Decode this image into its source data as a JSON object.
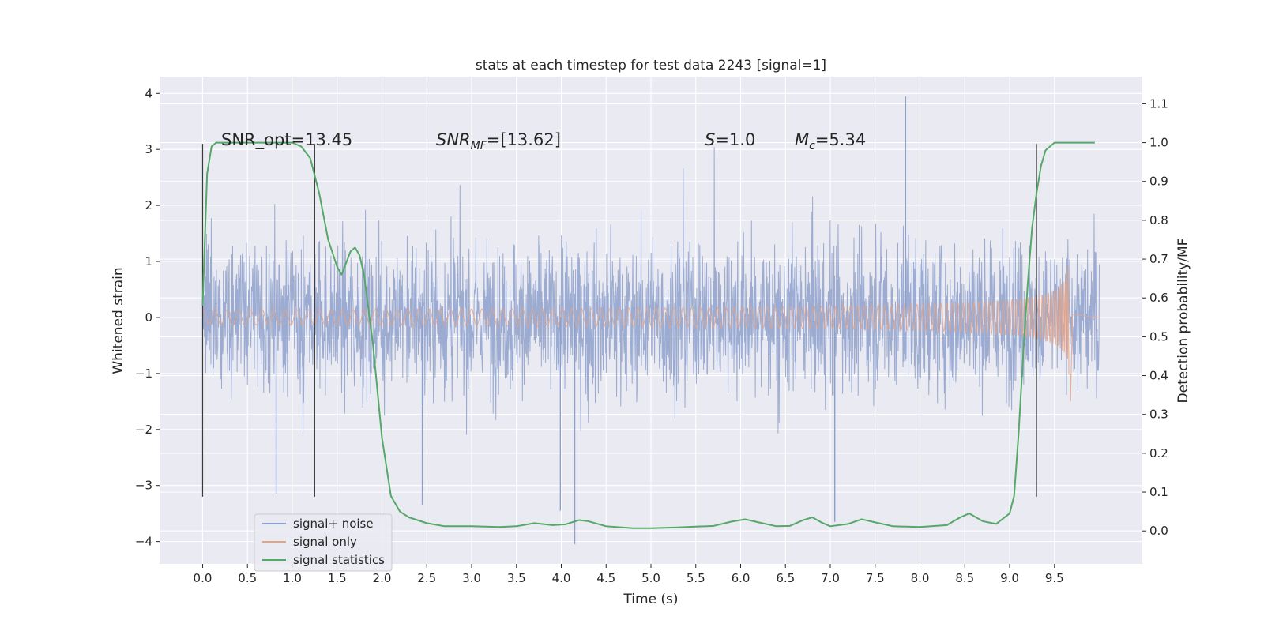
{
  "chart_data": {
    "type": "line",
    "title": "stats at each timestep for test data 2243 [signal=1]",
    "xlabel": "Time (s)",
    "ylabel": "Whitened strain",
    "y2label": "Detection probability/MF",
    "xlim": [
      -0.48,
      10.48
    ],
    "ylim": [
      -4.4,
      4.3
    ],
    "y2lim": [
      -0.085,
      1.17
    ],
    "x_ticks": [
      0.0,
      0.5,
      1.0,
      1.5,
      2.0,
      2.5,
      3.0,
      3.5,
      4.0,
      4.5,
      5.0,
      5.5,
      6.0,
      6.5,
      7.0,
      7.5,
      8.0,
      8.5,
      9.0,
      9.5
    ],
    "x_tick_labels": [
      "0.0",
      "0.5",
      "1.0",
      "1.5",
      "2.0",
      "2.5",
      "3.0",
      "3.5",
      "4.0",
      "4.5",
      "5.0",
      "5.5",
      "6.0",
      "6.5",
      "7.0",
      "7.5",
      "8.0",
      "8.5",
      "9.0",
      "9.5"
    ],
    "y_ticks": [
      -4,
      -3,
      -2,
      -1,
      0,
      1,
      2,
      3,
      4
    ],
    "y_tick_labels": [
      "−4",
      "−3",
      "−2",
      "−1",
      "0",
      "1",
      "2",
      "3",
      "4"
    ],
    "y2_ticks": [
      0.0,
      0.1,
      0.2,
      0.3,
      0.4,
      0.5,
      0.6,
      0.7,
      0.8,
      0.9,
      1.0,
      1.1
    ],
    "y2_tick_labels": [
      "0.0",
      "0.1",
      "0.2",
      "0.3",
      "0.4",
      "0.5",
      "0.6",
      "0.7",
      "0.8",
      "0.9",
      "1.0",
      "1.1"
    ],
    "grid": true,
    "legend_position": "bottom-left",
    "annotations": {
      "snr_opt": "SNR_opt=13.45",
      "snr_mf_main": "SNR",
      "snr_mf_sub": "MF",
      "snr_mf_rest": "=[13.62]",
      "s_main": "S",
      "s_rest": "=1.0",
      "mc_main": "M",
      "mc_sub": "c",
      "mc_rest": "=5.34"
    },
    "vertical_lines_x": [
      0.0,
      1.25,
      9.3
    ],
    "series": [
      {
        "name": "signal+ noise",
        "color": "#8da0cb",
        "x_range": [
          0.0,
          10.0
        ],
        "envelope_typical": 1.5,
        "peak_max": 3.95,
        "peak_min": -4.05
      },
      {
        "name": "signal only",
        "color": "#e8a385",
        "x_range": [
          0.0,
          9.68
        ],
        "amplitude_start": 0.02,
        "amplitude_end": 1.15,
        "cutoff_x": 9.68
      },
      {
        "name": "signal statistics",
        "color": "#55a868",
        "x": [
          0.0,
          0.05,
          0.1,
          0.15,
          0.2,
          0.4,
          0.6,
          0.8,
          0.9,
          1.0,
          1.1,
          1.2,
          1.3,
          1.4,
          1.5,
          1.55,
          1.6,
          1.65,
          1.7,
          1.75,
          1.8,
          1.9,
          2.0,
          2.1,
          2.2,
          2.3,
          2.5,
          2.7,
          3.0,
          3.3,
          3.5,
          3.7,
          3.9,
          4.05,
          4.2,
          4.3,
          4.5,
          4.8,
          5.0,
          5.3,
          5.5,
          5.7,
          5.9,
          6.05,
          6.2,
          6.4,
          6.55,
          6.7,
          6.8,
          6.9,
          7.0,
          7.2,
          7.35,
          7.5,
          7.7,
          8.0,
          8.3,
          8.45,
          8.55,
          8.7,
          8.85,
          9.0,
          9.05,
          9.1,
          9.15,
          9.2,
          9.25,
          9.3,
          9.35,
          9.4,
          9.45,
          9.5,
          9.6,
          9.8,
          9.95
        ],
        "y": [
          0.58,
          0.92,
          0.99,
          1.0,
          1.0,
          1.0,
          1.0,
          1.0,
          1.0,
          1.0,
          0.99,
          0.96,
          0.87,
          0.75,
          0.68,
          0.66,
          0.69,
          0.72,
          0.73,
          0.71,
          0.66,
          0.48,
          0.24,
          0.09,
          0.05,
          0.035,
          0.02,
          0.012,
          0.012,
          0.01,
          0.012,
          0.02,
          0.015,
          0.017,
          0.028,
          0.025,
          0.012,
          0.007,
          0.007,
          0.009,
          0.011,
          0.013,
          0.024,
          0.03,
          0.022,
          0.012,
          0.013,
          0.028,
          0.035,
          0.022,
          0.012,
          0.018,
          0.03,
          0.022,
          0.012,
          0.01,
          0.015,
          0.035,
          0.045,
          0.025,
          0.018,
          0.045,
          0.09,
          0.25,
          0.45,
          0.63,
          0.78,
          0.87,
          0.94,
          0.98,
          0.99,
          1.0,
          1.0,
          1.0,
          1.0
        ]
      }
    ]
  }
}
